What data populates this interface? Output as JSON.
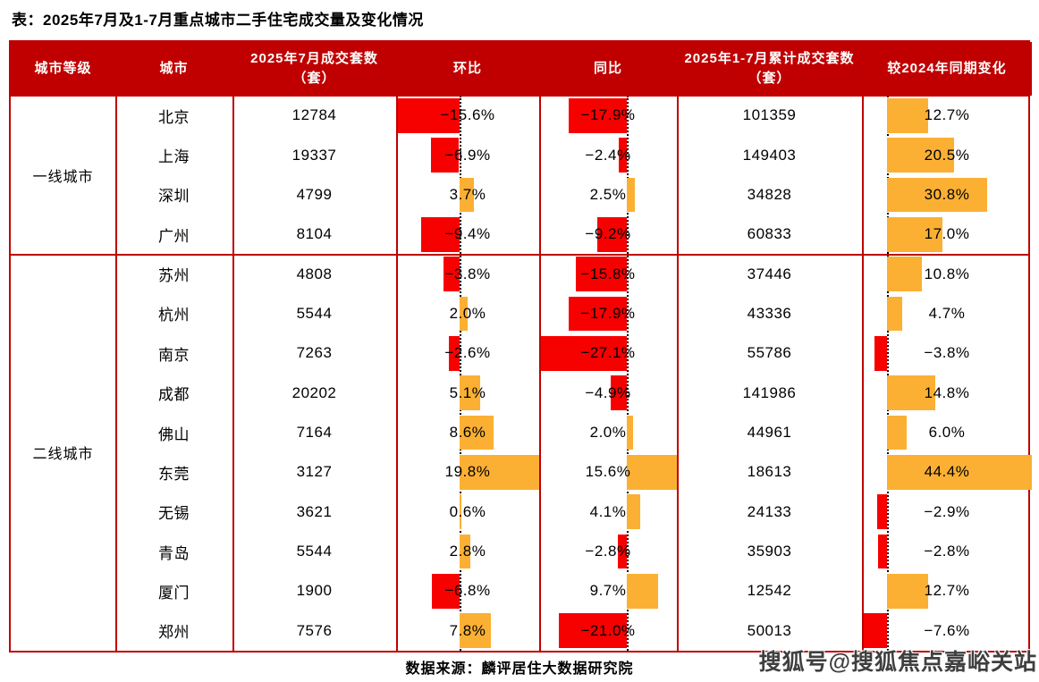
{
  "title": "表：2025年7月及1-7月重点城市二手住宅成交量及变化情况",
  "source": "数据来源：麟评居住大数据研究院",
  "watermark": "搜狐号@搜狐焦点嘉峪关站",
  "colors": {
    "header_bg": "#C00000",
    "grid": "#C00000",
    "header_text": "#FFFFFF",
    "text": "#000000",
    "bar_negative": "#F70000",
    "bar_positive": "#FBB034",
    "watermark_text": "#3F3F3F"
  },
  "chart_data": {
    "type": "table",
    "title": "2025年7月及1-7月重点城市二手住宅成交量及变化情况",
    "columns": [
      "城市等级",
      "城市",
      "2025年7月成交套数（套）",
      "环比",
      "同比",
      "2025年1-7月累计成交套数（套）",
      "较2024年同期变化"
    ],
    "bar_columns": [
      "环比",
      "同比",
      "较2024年同期变化"
    ],
    "bar_style": "negative red bars extend left of dotted zero axis, positive orange bars extend right, scaled to fill column between min and max",
    "groups": [
      {
        "tier": "一线城市",
        "rows": [
          {
            "city": "北京",
            "jul": 12784,
            "mom": -15.6,
            "yoy": -17.9,
            "cum": 101359,
            "vs": 12.7
          },
          {
            "city": "上海",
            "jul": 19337,
            "mom": -6.9,
            "yoy": -2.4,
            "cum": 149403,
            "vs": 20.5
          },
          {
            "city": "深圳",
            "jul": 4799,
            "mom": 3.7,
            "yoy": 2.5,
            "cum": 34828,
            "vs": 30.8
          },
          {
            "city": "广州",
            "jul": 8104,
            "mom": -9.4,
            "yoy": -9.2,
            "cum": 60833,
            "vs": 17.0
          }
        ]
      },
      {
        "tier": "二线城市",
        "rows": [
          {
            "city": "苏州",
            "jul": 4808,
            "mom": -3.8,
            "yoy": -15.8,
            "cum": 37446,
            "vs": 10.8
          },
          {
            "city": "杭州",
            "jul": 5544,
            "mom": 2.0,
            "yoy": -17.9,
            "cum": 43336,
            "vs": 4.7
          },
          {
            "city": "南京",
            "jul": 7263,
            "mom": -2.6,
            "yoy": -27.1,
            "cum": 55786,
            "vs": -3.8
          },
          {
            "city": "成都",
            "jul": 20202,
            "mom": 5.1,
            "yoy": -4.9,
            "cum": 141986,
            "vs": 14.8
          },
          {
            "city": "佛山",
            "jul": 7164,
            "mom": 8.6,
            "yoy": 2.0,
            "cum": 44961,
            "vs": 6.0
          },
          {
            "city": "东莞",
            "jul": 3127,
            "mom": 19.8,
            "yoy": 15.6,
            "cum": 18613,
            "vs": 44.4
          },
          {
            "city": "无锡",
            "jul": 3621,
            "mom": 0.6,
            "yoy": 4.1,
            "cum": 24133,
            "vs": -2.9
          },
          {
            "city": "青岛",
            "jul": 5544,
            "mom": 2.8,
            "yoy": -2.8,
            "cum": 35903,
            "vs": -2.8
          },
          {
            "city": "厦门",
            "jul": 1900,
            "mom": -6.8,
            "yoy": 9.7,
            "cum": 12542,
            "vs": 12.7
          },
          {
            "city": "郑州",
            "jul": 7576,
            "mom": 7.8,
            "yoy": -21.0,
            "cum": 50013,
            "vs": -7.6
          }
        ]
      }
    ]
  }
}
